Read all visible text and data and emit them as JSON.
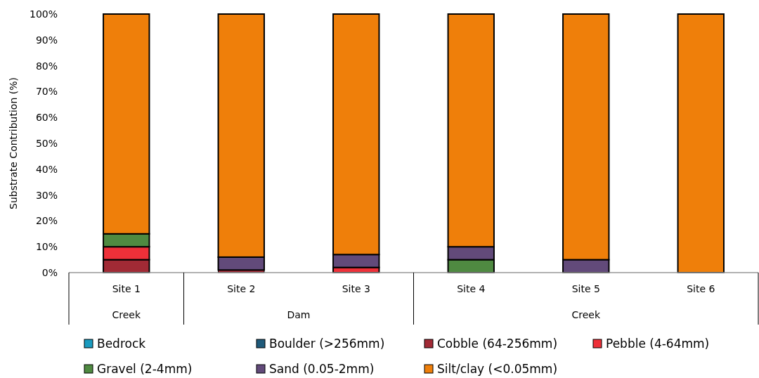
{
  "chart_data": {
    "type": "bar",
    "stacked": true,
    "ylabel": "Substrate Contribution (%)",
    "categories": [
      "Site 1",
      "Site 2",
      "Site 3",
      "Site 4",
      "Site 5",
      "Site 6"
    ],
    "series": [
      {
        "name": "Bedrock",
        "color": "#1a9bbf",
        "values": [
          0,
          0,
          0,
          0,
          0,
          0
        ]
      },
      {
        "name": "Boulder (>256mm)",
        "color": "#1f5a7a",
        "values": [
          0,
          0,
          0,
          0,
          0,
          0
        ]
      },
      {
        "name": "Cobble (64-256mm)",
        "color": "#a12a35",
        "values": [
          5,
          1,
          0,
          0,
          0,
          0
        ]
      },
      {
        "name": "Pebble (4-64mm)",
        "color": "#ee3039",
        "values": [
          5,
          0,
          2,
          0,
          0,
          0
        ]
      },
      {
        "name": "Gravel (2-4mm)",
        "color": "#4f8a41",
        "values": [
          5,
          0,
          0,
          5,
          0,
          0
        ]
      },
      {
        "name": "Sand (0.05-2mm)",
        "color": "#624a7a",
        "values": [
          0,
          5,
          5,
          5,
          5,
          0
        ]
      },
      {
        "name": "Silt/clay (<0.05mm)",
        "color": "#ef7f0a",
        "values": [
          85,
          94,
          93,
          90,
          95,
          100
        ]
      }
    ],
    "ylim": [
      0,
      100
    ],
    "yticks": [
      {
        "value": 0,
        "label": "0%"
      },
      {
        "value": 10,
        "label": "10%"
      },
      {
        "value": 20,
        "label": "20%"
      },
      {
        "value": 30,
        "label": "30%"
      },
      {
        "value": 40,
        "label": "40%"
      },
      {
        "value": 50,
        "label": "50%"
      },
      {
        "value": 60,
        "label": "60%"
      },
      {
        "value": 70,
        "label": "70%"
      },
      {
        "value": 80,
        "label": "80%"
      },
      {
        "value": 90,
        "label": "90%"
      },
      {
        "value": 100,
        "label": "100%"
      }
    ],
    "annotations": [
      "Creek",
      "Dam",
      "Creek"
    ],
    "legend": "bottom",
    "grid": false
  }
}
